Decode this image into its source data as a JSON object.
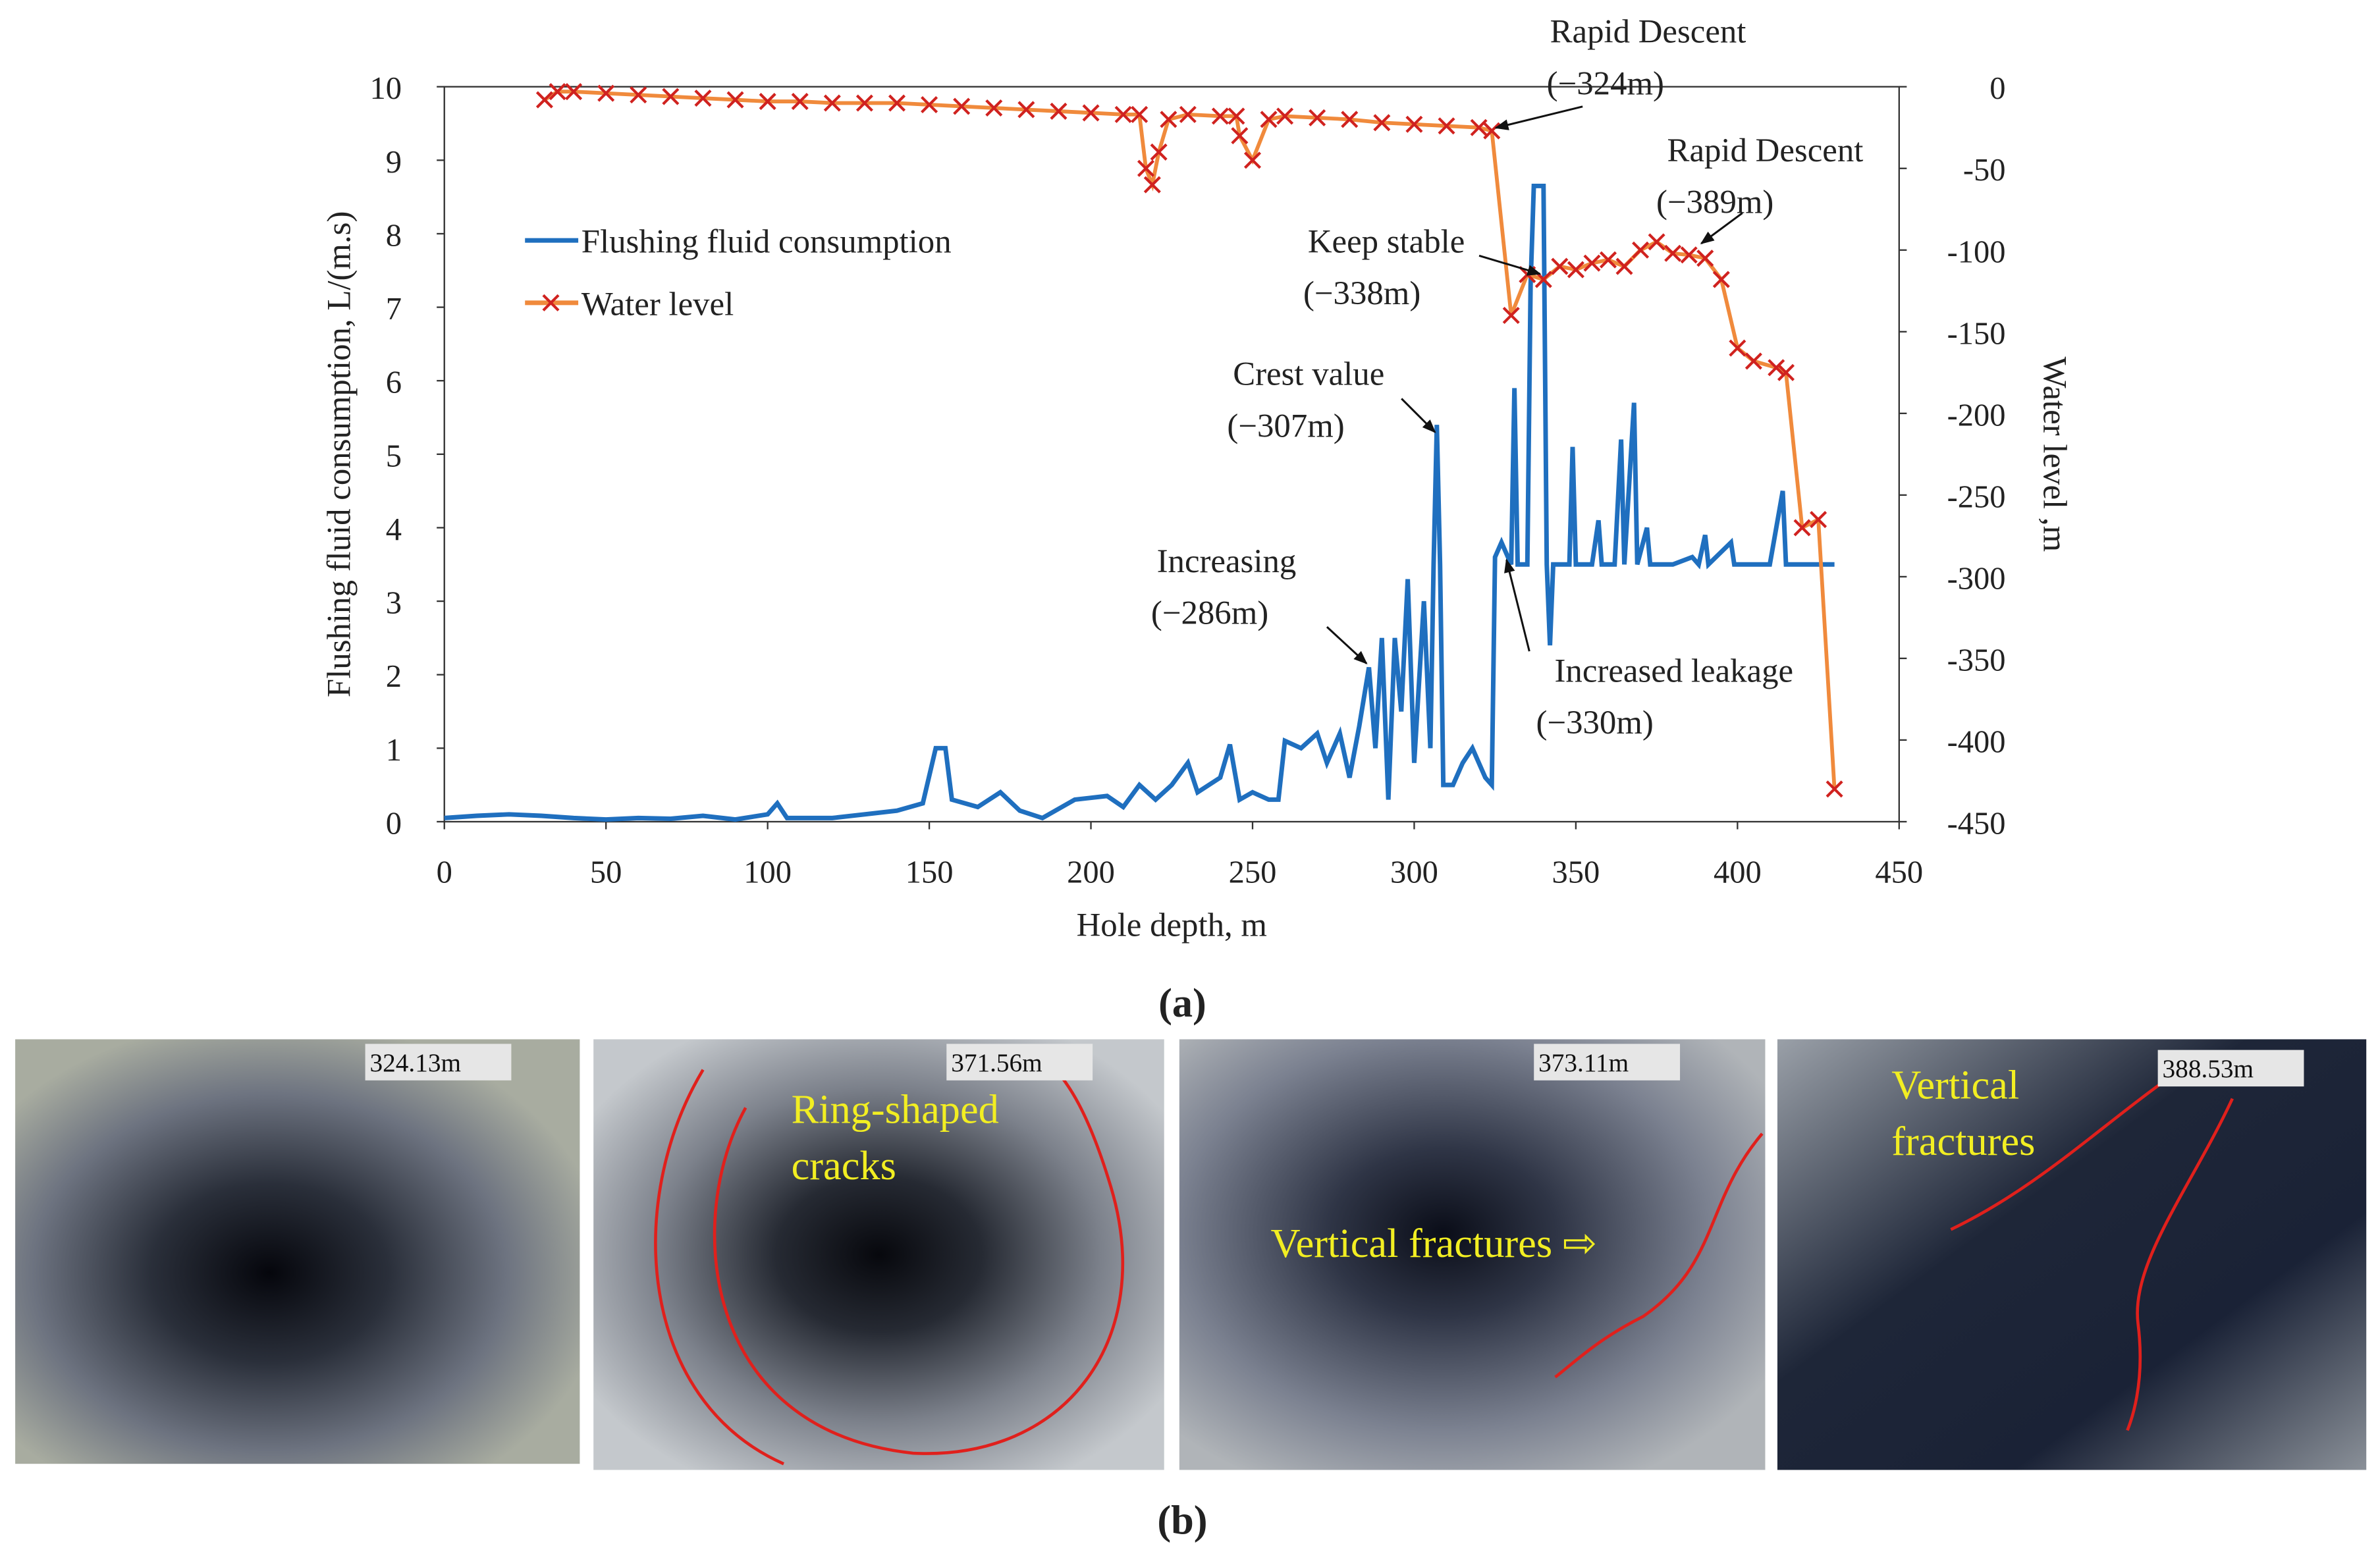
{
  "chart_data": {
    "type": "line",
    "xlabel": "Hole depth, m",
    "ylabel": "Flushing fluid consumption, L/(m.s)",
    "y2label": "Water level ,m",
    "xlim": [
      0,
      450
    ],
    "xticks": [
      0,
      50,
      100,
      150,
      200,
      250,
      300,
      350,
      400,
      450
    ],
    "ylim": [
      0,
      10
    ],
    "yticks": [
      0,
      1,
      2,
      3,
      4,
      5,
      6,
      7,
      8,
      9,
      10
    ],
    "y2lim": [
      -450,
      0
    ],
    "y2ticks": [
      -450,
      -400,
      -350,
      -300,
      -250,
      -200,
      -150,
      -100,
      -50,
      0
    ],
    "legend": "upper left",
    "series": [
      {
        "name": "Flushing fluid consumption",
        "color": "#1f6fbf",
        "x": [
          0,
          10,
          20,
          30,
          40,
          50,
          60,
          70,
          80,
          90,
          100,
          103,
          106,
          120,
          130,
          140,
          148,
          152,
          155,
          157,
          165,
          172,
          178,
          185,
          195,
          205,
          210,
          215,
          220,
          225,
          230,
          233,
          240,
          243,
          246,
          250,
          255,
          258,
          260,
          265,
          270,
          273,
          277,
          280,
          283,
          286,
          288,
          290,
          292,
          294,
          296,
          298,
          300,
          303,
          305,
          306,
          307,
          308,
          309,
          312,
          315,
          318,
          322,
          324,
          325,
          327,
          330,
          331,
          332,
          335,
          336,
          337,
          340,
          341,
          342,
          343,
          345,
          348,
          349,
          350,
          355,
          357,
          358,
          362,
          364,
          365,
          368,
          369,
          372,
          373,
          380,
          386,
          388,
          390,
          391,
          398,
          399,
          410,
          414,
          415,
          430
        ],
        "values": [
          0.05,
          0.08,
          0.1,
          0.08,
          0.05,
          0.03,
          0.05,
          0.04,
          0.08,
          0.03,
          0.1,
          0.25,
          0.05,
          0.05,
          0.1,
          0.15,
          0.25,
          1.0,
          1.0,
          0.3,
          0.2,
          0.4,
          0.15,
          0.05,
          0.3,
          0.35,
          0.2,
          0.5,
          0.3,
          0.5,
          0.8,
          0.4,
          0.6,
          1.05,
          0.3,
          0.4,
          0.3,
          0.3,
          1.1,
          1.0,
          1.2,
          0.8,
          1.2,
          0.6,
          1.3,
          2.1,
          1.0,
          2.5,
          0.3,
          2.5,
          1.5,
          3.3,
          0.8,
          3.0,
          1.0,
          3.5,
          5.4,
          3.5,
          0.5,
          0.5,
          0.8,
          1.0,
          0.6,
          0.5,
          3.6,
          3.8,
          3.5,
          5.9,
          3.5,
          3.5,
          7.3,
          8.65,
          8.65,
          3.5,
          2.4,
          3.5,
          3.5,
          3.5,
          5.1,
          3.5,
          3.5,
          4.1,
          3.5,
          3.5,
          5.2,
          3.5,
          5.7,
          3.5,
          4.0,
          3.5,
          3.5,
          3.6,
          3.5,
          3.9,
          3.5,
          3.8,
          3.5,
          3.5,
          4.5,
          3.5,
          3.5
        ]
      },
      {
        "name": "Water level",
        "color": "#f08a3c",
        "marker_color": "#d0221f",
        "axis": "y2",
        "x": [
          31,
          35,
          40,
          50,
          60,
          70,
          80,
          90,
          100,
          110,
          120,
          130,
          140,
          150,
          160,
          170,
          180,
          190,
          200,
          210,
          215,
          217,
          219,
          221,
          224,
          230,
          240,
          245,
          246,
          250,
          255,
          260,
          270,
          280,
          290,
          300,
          310,
          320,
          324,
          330,
          335,
          340,
          345,
          350,
          355,
          360,
          365,
          370,
          375,
          380,
          385,
          390,
          395,
          400,
          405,
          412,
          415,
          420,
          425,
          430
        ],
        "values": [
          -8,
          -3,
          -3,
          -4,
          -5,
          -6,
          -7,
          -8,
          -9,
          -9,
          -10,
          -10,
          -10,
          -11,
          -12,
          -13,
          -14,
          -15,
          -16,
          -17,
          -17,
          -50,
          -60,
          -40,
          -20,
          -17,
          -18,
          -18,
          -30,
          -45,
          -20,
          -18,
          -19,
          -20,
          -22,
          -23,
          -24,
          -25,
          -27,
          -140,
          -115,
          -118,
          -110,
          -112,
          -108,
          -106,
          -110,
          -100,
          -95,
          -102,
          -103,
          -105,
          -118,
          -160,
          -168,
          -172,
          -175,
          -270,
          -265,
          -430
        ]
      }
    ],
    "annotations": [
      {
        "lines": [
          "Rapid Descent",
          "(−324m)"
        ]
      },
      {
        "lines": [
          "Rapid Descent",
          "(−389m)"
        ]
      },
      {
        "lines": [
          "Keep stable",
          "(−338m)"
        ]
      },
      {
        "lines": [
          "Crest value",
          "(−307m)"
        ]
      },
      {
        "lines": [
          "Increasing",
          "(−286m)"
        ]
      },
      {
        "lines": [
          "Increased leakage",
          "(−330m)"
        ]
      }
    ]
  },
  "panel_labels": [
    "(a)",
    "(b)"
  ],
  "photos": [
    {
      "depth": "324.13m"
    },
    {
      "depth": "371.56m",
      "annotation": [
        "Ring-shaped",
        "cracks"
      ]
    },
    {
      "depth": "373.11m",
      "annotation": [
        "Vertical fractures ⇨"
      ]
    },
    {
      "depth": "388.53m",
      "annotation": [
        "Vertical",
        "fractures"
      ]
    }
  ]
}
